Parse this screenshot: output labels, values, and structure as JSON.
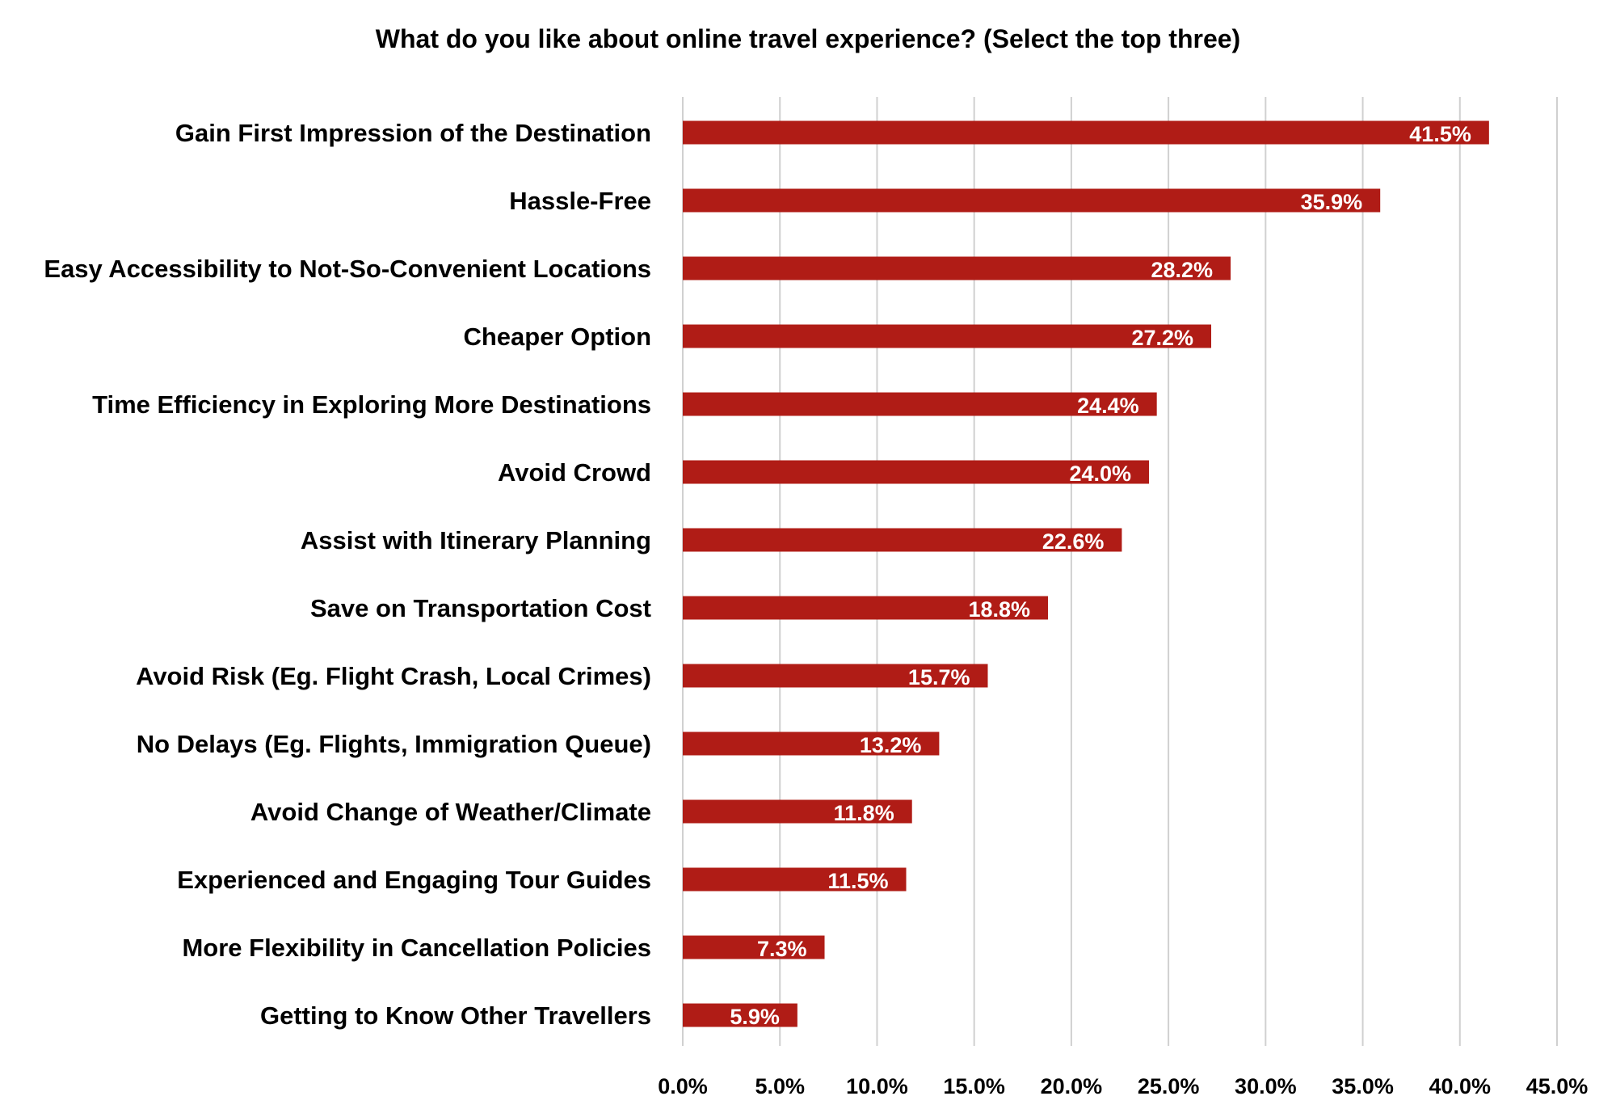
{
  "chart_data": {
    "type": "bar",
    "orientation": "horizontal",
    "title": "What do you like about online travel experience? (Select the top three)",
    "categories": [
      "Gain First Impression of the Destination",
      "Hassle-Free",
      "Easy Accessibility to Not-So-Convenient Locations",
      "Cheaper Option",
      "Time Efficiency in Exploring More Destinations",
      "Avoid Crowd",
      "Assist with Itinerary Planning",
      "Save on Transportation Cost",
      "Avoid Risk (Eg. Flight Crash, Local Crimes)",
      "No Delays (Eg. Flights, Immigration Queue)",
      "Avoid Change of Weather/Climate",
      "Experienced and Engaging Tour Guides",
      "More Flexibility in Cancellation Policies",
      "Getting to Know Other Travellers"
    ],
    "values": [
      41.5,
      35.9,
      28.2,
      27.2,
      24.4,
      24.0,
      22.6,
      18.8,
      15.7,
      13.2,
      11.8,
      11.5,
      7.3,
      5.9
    ],
    "data_labels": [
      "41.5%",
      "35.9%",
      "28.2%",
      "27.2%",
      "24.4%",
      "24.0%",
      "22.6%",
      "18.8%",
      "15.7%",
      "13.2%",
      "11.8%",
      "11.5%",
      "7.3%",
      "5.9%"
    ],
    "xlim": [
      0,
      45
    ],
    "x_ticks": [
      0,
      5,
      10,
      15,
      20,
      25,
      30,
      35,
      40,
      45
    ],
    "x_tick_labels": [
      "0.0%",
      "5.0%",
      "10.0%",
      "15.0%",
      "20.0%",
      "25.0%",
      "30.0%",
      "35.0%",
      "40.0%",
      "45.0%"
    ],
    "xlabel": "",
    "ylabel": "",
    "grid": "vertical",
    "legend": "none",
    "bar_color": "#B01C16",
    "grid_color": "#D0D0D0",
    "label_color": "#FFFFFF",
    "text_color": "#000000"
  }
}
